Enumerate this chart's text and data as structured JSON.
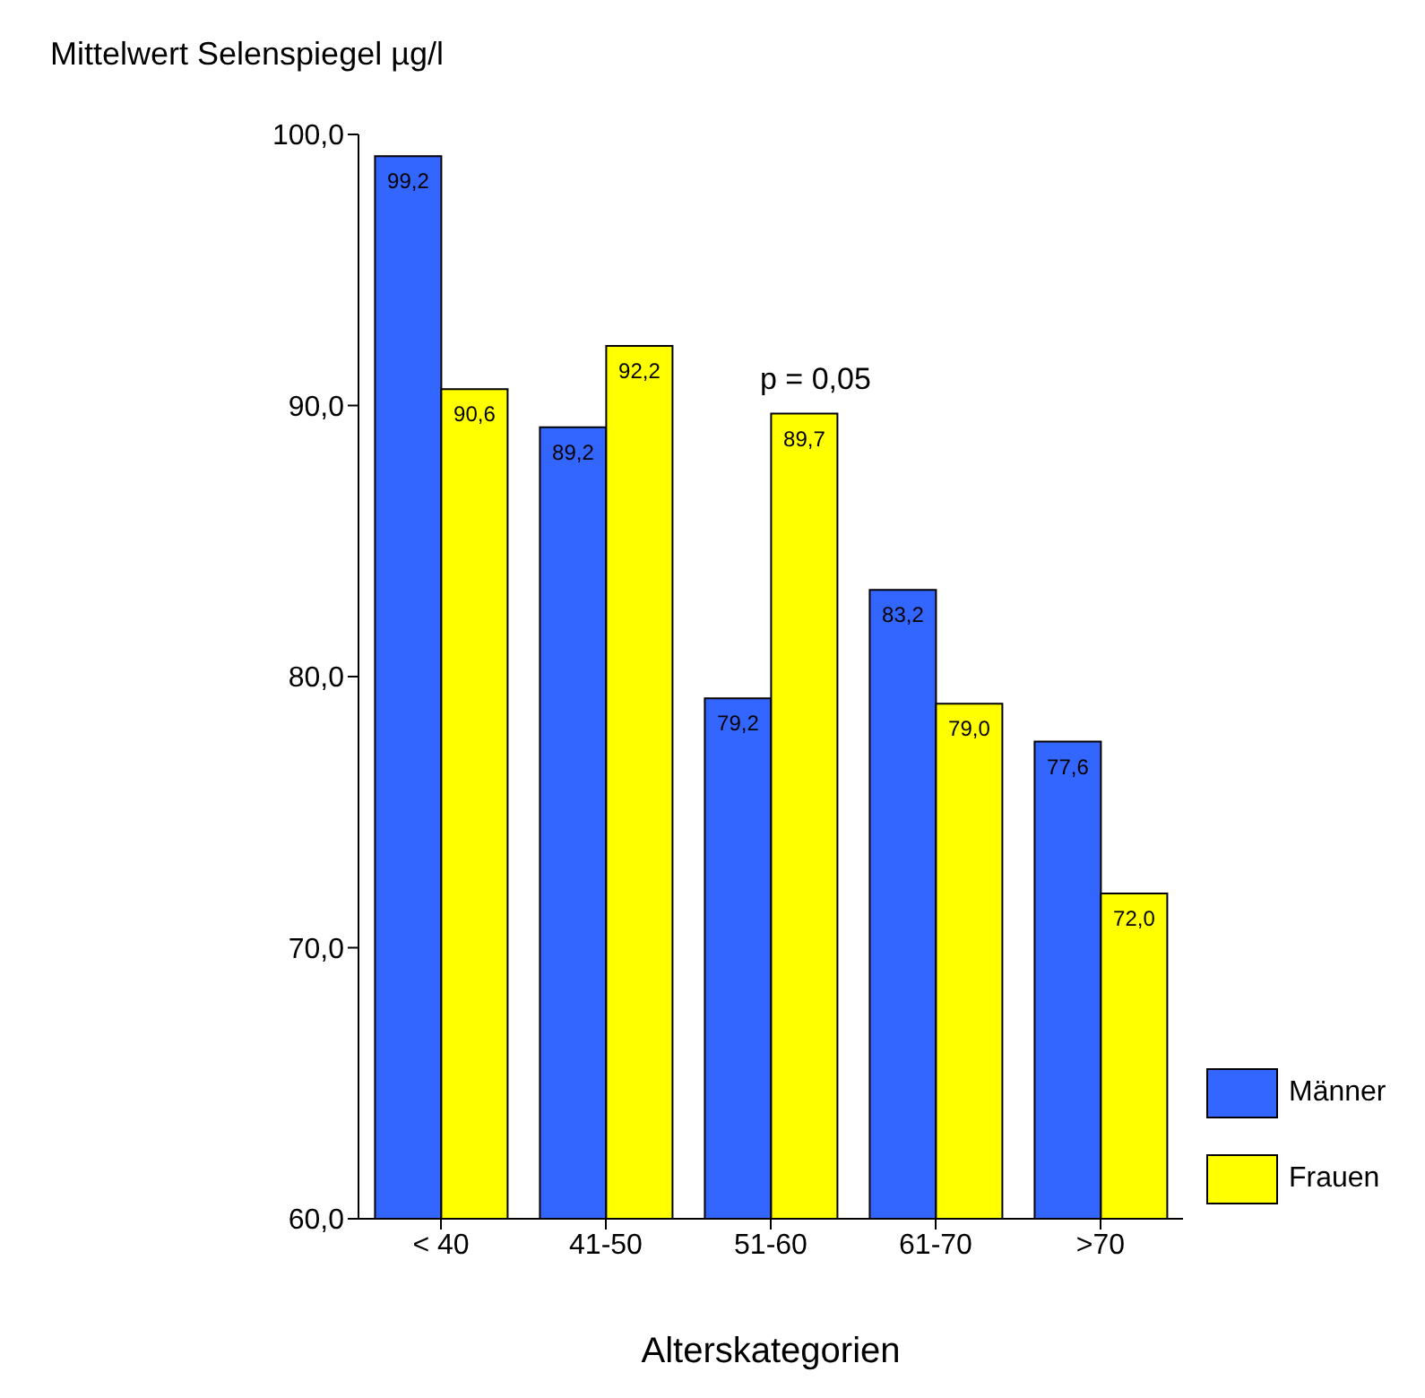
{
  "chart_data": {
    "type": "bar",
    "title": "Mittelwert Selenspiegel µg/l",
    "xlabel": "Alterskategorien",
    "categories": [
      "< 40",
      "41-50",
      "51-60",
      "61-70",
      ">70"
    ],
    "series": [
      {
        "name": "Männer",
        "color": "#3366ff",
        "values": [
          99.2,
          89.2,
          79.2,
          83.2,
          77.6
        ],
        "value_labels": [
          "99,2",
          "89,2",
          "79,2",
          "83,2",
          "77,6"
        ]
      },
      {
        "name": "Frauen",
        "color": "#ffff00",
        "values": [
          90.6,
          92.2,
          89.7,
          79.0,
          72.0
        ],
        "value_labels": [
          "90,6",
          "92,2",
          "89,7",
          "79,0",
          "72,0"
        ]
      }
    ],
    "ylim": [
      60,
      100
    ],
    "yticks": [
      {
        "value": 60,
        "label": "60,0"
      },
      {
        "value": 70,
        "label": "70,0"
      },
      {
        "value": 80,
        "label": "80,0"
      },
      {
        "value": 90,
        "label": "90,0"
      },
      {
        "value": 100,
        "label": "100,0"
      }
    ],
    "annotations": [
      "p = 0,05"
    ],
    "legend": "bottom right",
    "grid": false
  }
}
